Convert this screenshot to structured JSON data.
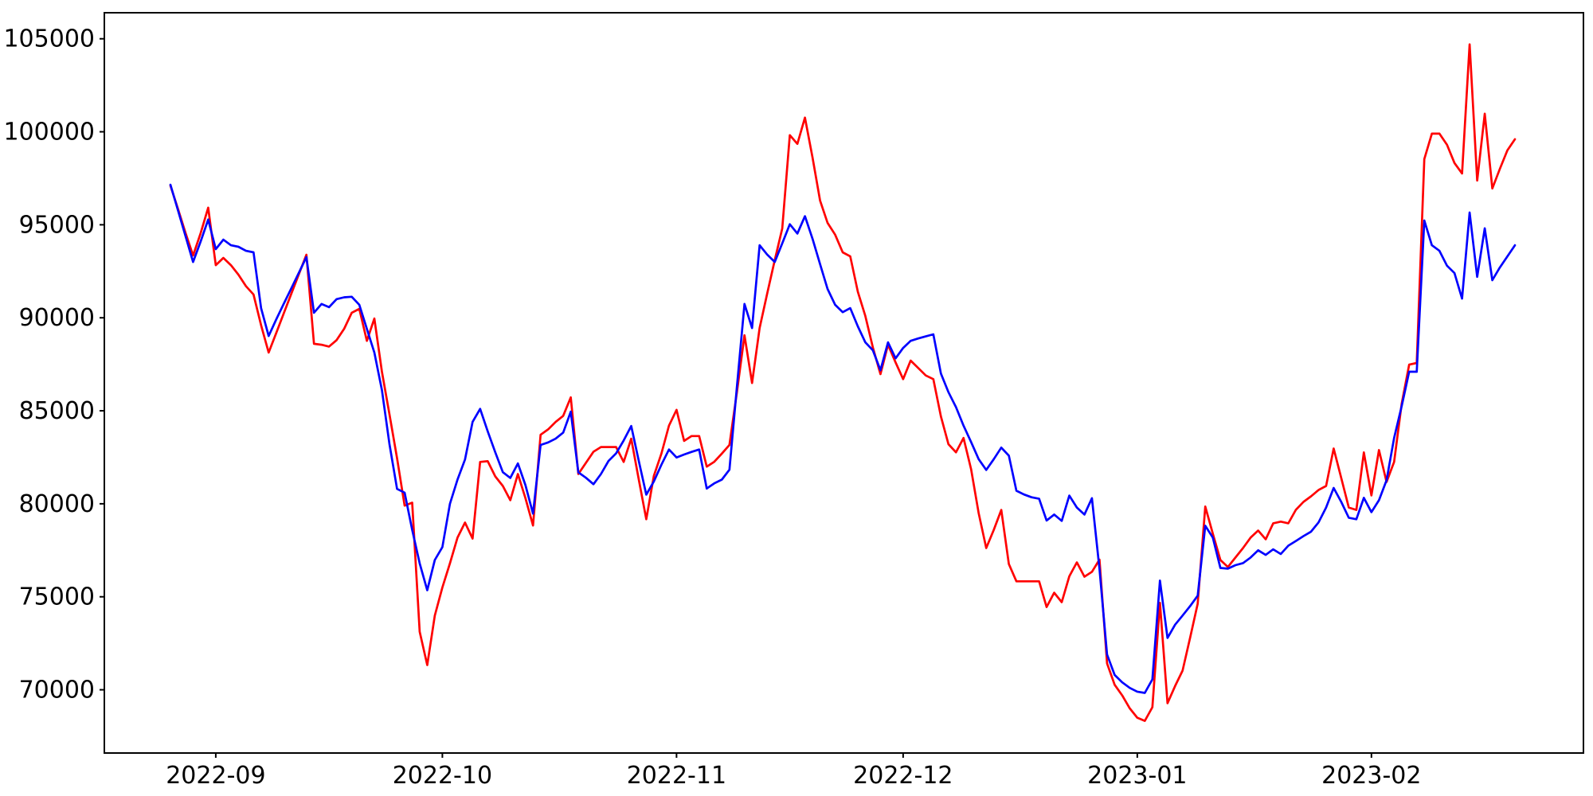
{
  "figure": {
    "background_color": "#ffffff",
    "axes_color": "#000000",
    "title": "",
    "legend": null
  },
  "chart_data": {
    "type": "line",
    "title": "",
    "xlabel": "",
    "ylabel": "",
    "grid": false,
    "legend_position": "none",
    "x_start_date": "2022-08-26",
    "x_frequency": "daily",
    "x_tick_labels": [
      "2022-09",
      "2022-10",
      "2022-11",
      "2022-12",
      "2023-01",
      "2023-02"
    ],
    "x_tick_day_indices": [
      6,
      36,
      67,
      97,
      128,
      159
    ],
    "y_tick_labels": [
      "70000",
      "75000",
      "80000",
      "85000",
      "90000",
      "95000",
      "100000",
      "105000"
    ],
    "y_tick_values": [
      70000,
      75000,
      80000,
      85000,
      90000,
      95000,
      100000,
      105000
    ],
    "ylim": [
      66600,
      106400
    ],
    "series": [
      {
        "name": "red-series",
        "color": "#ff0000",
        "values": [
          97100,
          95850,
          94550,
          93350,
          94550,
          95920,
          92830,
          93220,
          92830,
          92320,
          91700,
          91250,
          89600,
          88130,
          89180,
          90230,
          91290,
          92340,
          93390,
          88600,
          88550,
          88450,
          88800,
          89410,
          90270,
          90480,
          88760,
          89960,
          87100,
          84800,
          82450,
          79900,
          80060,
          73120,
          71330,
          73990,
          75500,
          76800,
          78180,
          78990,
          78130,
          82250,
          82290,
          81470,
          80960,
          80190,
          81600,
          80300,
          78830,
          83710,
          84000,
          84400,
          84730,
          85720,
          81600,
          82200,
          82800,
          83050,
          83050,
          83050,
          82250,
          83500,
          81300,
          79170,
          81500,
          82700,
          84200,
          85050,
          83380,
          83640,
          83640,
          82000,
          82260,
          82700,
          83160,
          86000,
          89060,
          86490,
          89450,
          91300,
          93100,
          94800,
          99820,
          99350,
          100760,
          98620,
          96300,
          95100,
          94470,
          93520,
          93300,
          91400,
          90100,
          88400,
          86970,
          88550,
          87600,
          86700,
          87700,
          87300,
          86900,
          86700,
          84700,
          83200,
          82770,
          83540,
          81860,
          79500,
          77620,
          78600,
          79670,
          76760,
          75830,
          75830,
          75830,
          75830,
          74450,
          75220,
          74710,
          76100,
          76850,
          76080,
          76340,
          77000,
          71420,
          70270,
          69700,
          69000,
          68500,
          68330,
          69060,
          74670,
          69280,
          70200,
          71030,
          72800,
          74630,
          79850,
          78390,
          76980,
          76600,
          77110,
          77620,
          78180,
          78560,
          78090,
          78950,
          79040,
          78950,
          79680,
          80100,
          80400,
          80740,
          80960,
          82970,
          81390,
          79800,
          79670,
          82760,
          80450,
          82890,
          81170,
          82250,
          85380,
          87480,
          87570,
          98530,
          99900,
          99900,
          99300,
          98320,
          97760,
          104700,
          97380,
          100970,
          96950,
          98000,
          99000,
          99600
        ]
      },
      {
        "name": "blue-series",
        "color": "#0000ff",
        "values": [
          97150,
          95770,
          94380,
          93000,
          94100,
          95280,
          93690,
          94200,
          93900,
          93820,
          93600,
          93520,
          90520,
          89020,
          89910,
          90750,
          91580,
          92420,
          93260,
          90270,
          90740,
          90570,
          91000,
          91100,
          91130,
          90700,
          89400,
          88130,
          86110,
          83200,
          80800,
          80600,
          78600,
          76800,
          75350,
          76980,
          77670,
          80000,
          81300,
          82380,
          84400,
          85100,
          83900,
          82770,
          81700,
          81390,
          82170,
          81000,
          79470,
          83160,
          83300,
          83500,
          83830,
          84950,
          81690,
          81400,
          81050,
          81600,
          82300,
          82710,
          83400,
          84180,
          82300,
          80490,
          81200,
          82100,
          82920,
          82490,
          82650,
          82790,
          82920,
          80820,
          81100,
          81300,
          81830,
          86300,
          90740,
          89450,
          93900,
          93400,
          93000,
          94000,
          95030,
          94530,
          95460,
          94250,
          92880,
          91550,
          90700,
          90300,
          90520,
          89540,
          88680,
          88250,
          87180,
          88680,
          87820,
          88380,
          88760,
          88890,
          89000,
          89110,
          87000,
          86000,
          85200,
          84200,
          83320,
          82400,
          81820,
          82400,
          83020,
          82590,
          80700,
          80500,
          80350,
          80270,
          79100,
          79420,
          79080,
          80440,
          79800,
          79420,
          80300,
          76500,
          71900,
          70800,
          70400,
          70100,
          69900,
          69830,
          70560,
          75870,
          72790,
          73500,
          73990,
          74500,
          75060,
          78820,
          78180,
          76550,
          76510,
          76700,
          76810,
          77110,
          77500,
          77250,
          77550,
          77300,
          77750,
          78000,
          78260,
          78500,
          79000,
          79800,
          80850,
          80100,
          79250,
          79170,
          80320,
          79550,
          80190,
          81260,
          83540,
          85250,
          87100,
          87100,
          95230,
          93900,
          93600,
          92800,
          92400,
          91030,
          95660,
          92200,
          94810,
          92020,
          92700,
          93300,
          93900
        ]
      }
    ]
  }
}
